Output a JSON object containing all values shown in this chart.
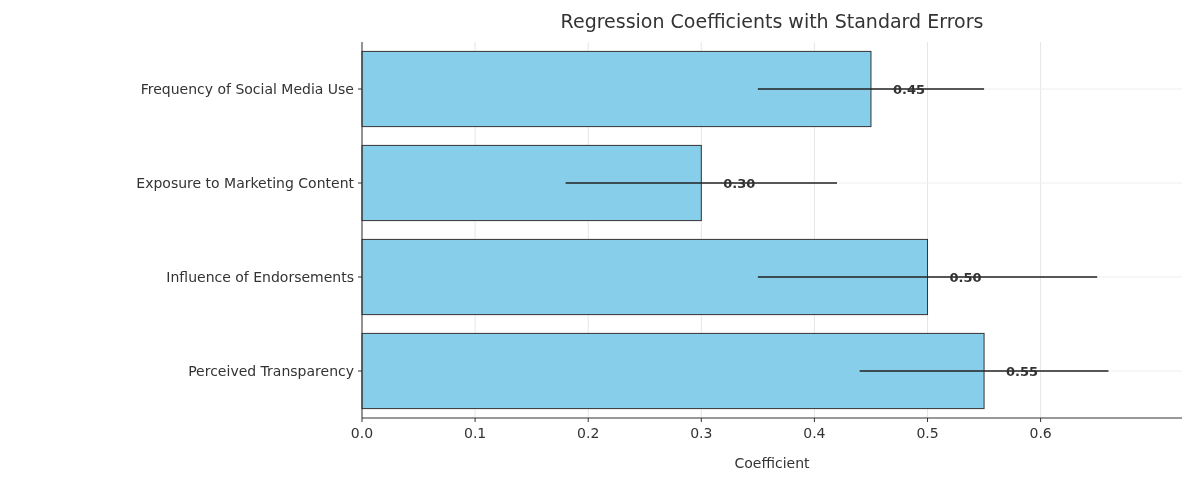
{
  "chart_data": {
    "type": "bar",
    "orientation": "horizontal",
    "title": "Regression Coefficients with Standard Errors",
    "xlabel": "Coefficient",
    "categories": [
      "Frequency of Social Media Use",
      "Exposure to Marketing Content",
      "Influence of Endorsements",
      "Perceived Transparency"
    ],
    "values": [
      0.45,
      0.3,
      0.5,
      0.55
    ],
    "errors": [
      0.1,
      0.12,
      0.15,
      0.11
    ],
    "value_labels": [
      "0.45",
      "0.30",
      "0.50",
      "0.55"
    ],
    "color": "#87ceeb",
    "xlim": [
      0,
      0.725
    ],
    "xticks": [
      {
        "value": 0,
        "label": "0.0"
      },
      0.1,
      0.2,
      0.3,
      0.4,
      0.5,
      0.6
    ],
    "grid": true
  }
}
